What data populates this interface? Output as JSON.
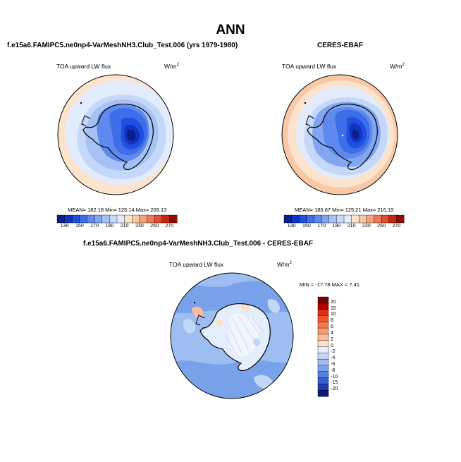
{
  "title": "ANN",
  "units_base": "W/m",
  "units_exp": "2",
  "chart_data": [
    {
      "type": "heatmap",
      "title": "f.e15a6.FAMIPC5.ne0np4-VarMeshNH3.Club_Test.006 (yrs 1979-1980)",
      "variable": "TOA upward LW flux",
      "projection": "south-polar-stereographic",
      "stats_label": "MEAN= 182.18  Min= 125.14  Max= 208.13",
      "stats": {
        "mean": 182.18,
        "min": 125.14,
        "max": 208.13
      },
      "colorbar": {
        "levels": [
          130,
          140,
          150,
          160,
          170,
          180,
          190,
          200,
          210,
          220,
          230,
          240,
          250,
          260,
          270
        ],
        "tick_labels": [
          "130",
          "150",
          "170",
          "190",
          "210",
          "230",
          "250",
          "270"
        ],
        "colors": [
          "#0b1f8c",
          "#1232c4",
          "#1f4fe0",
          "#3d6ee8",
          "#5e8aee",
          "#82a6f2",
          "#a6c1f6",
          "#c6d8fa",
          "#e3ecfc",
          "#fbe3cc",
          "#f8c8a7",
          "#f4a37e",
          "#ee7a56",
          "#e24e30",
          "#c52713",
          "#8e0c02"
        ]
      }
    },
    {
      "type": "heatmap",
      "title": "CERES-EBAF",
      "variable": "TOA upward LW flux",
      "projection": "south-polar-stereographic",
      "stats_label": "MEAN= 186.67  Min= 125.21  Max= 216.19",
      "stats": {
        "mean": 186.67,
        "min": 125.21,
        "max": 216.19
      },
      "colorbar": {
        "levels": [
          130,
          140,
          150,
          160,
          170,
          180,
          190,
          200,
          210,
          220,
          230,
          240,
          250,
          260,
          270
        ],
        "tick_labels": [
          "130",
          "150",
          "170",
          "190",
          "210",
          "230",
          "250",
          "270"
        ],
        "colors": [
          "#0b1f8c",
          "#1232c4",
          "#1f4fe0",
          "#3d6ee8",
          "#5e8aee",
          "#82a6f2",
          "#a6c1f6",
          "#c6d8fa",
          "#e3ecfc",
          "#fbe3cc",
          "#f8c8a7",
          "#f4a37e",
          "#ee7a56",
          "#e24e30",
          "#c52713",
          "#8e0c02"
        ]
      }
    },
    {
      "type": "heatmap",
      "title": "f.e15a6.FAMIPC5.ne0np4-VarMeshNH3.Club_Test.006 - CERES-EBAF",
      "variable": "TOA upward LW flux",
      "projection": "south-polar-stereographic",
      "stats_label": "MIN = -17.78 MAX =   7.41",
      "stats": {
        "min": -17.78,
        "max": 7.41
      },
      "colorbar": {
        "orientation": "vertical",
        "levels": [
          20,
          15,
          10,
          8,
          6,
          4,
          2,
          0,
          -2,
          -4,
          -6,
          -8,
          -10,
          -15,
          -20
        ],
        "tick_labels": [
          "20",
          "15",
          "10",
          "8",
          "6",
          "4",
          "2",
          "0",
          "-2",
          "-4",
          "-6",
          "-8",
          "-10",
          "-15",
          "-20"
        ],
        "colors": [
          "#7f0000",
          "#b30000",
          "#de2d0f",
          "#f2552a",
          "#f7784e",
          "#f99a73",
          "#fbbd9c",
          "#fde0c8",
          "#e4eefc",
          "#c3d7f7",
          "#9ebef2",
          "#7aa2eb",
          "#567fe0",
          "#355ed0",
          "#1c3bb4",
          "#0a1b7e"
        ]
      }
    }
  ]
}
